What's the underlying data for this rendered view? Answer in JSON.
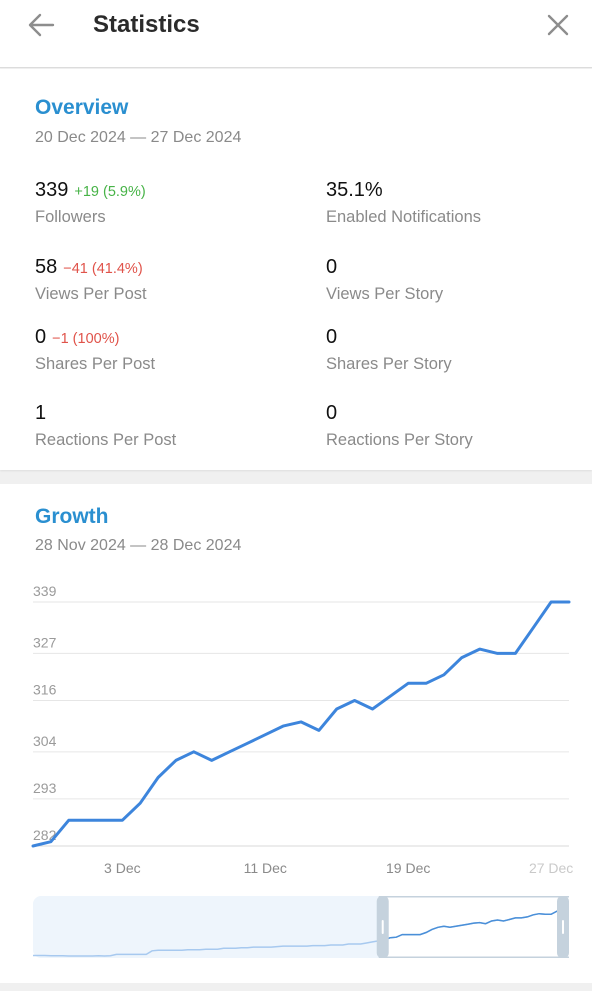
{
  "header": {
    "title": "Statistics",
    "back_icon": "arrow-left-icon",
    "close_icon": "close-icon"
  },
  "overview": {
    "title": "Overview",
    "range": "20 Dec 2024 — 27 Dec 2024",
    "stats": [
      {
        "value": "339",
        "delta": "+19 (5.9%)",
        "trend": "up",
        "label": "Followers"
      },
      {
        "value": "35.1%",
        "delta": "",
        "trend": "none",
        "label": "Enabled Notifications"
      },
      {
        "value": "58",
        "delta": "−41 (41.4%)",
        "trend": "down",
        "label": "Views Per Post"
      },
      {
        "value": "0",
        "delta": "",
        "trend": "none",
        "label": "Views Per Story"
      },
      {
        "value": "0",
        "delta": "−1 (100%)",
        "trend": "down",
        "label": "Shares Per Post"
      },
      {
        "value": "0",
        "delta": "",
        "trend": "none",
        "label": "Shares Per Story"
      },
      {
        "value": "1",
        "delta": "",
        "trend": "none",
        "label": "Reactions Per Post"
      },
      {
        "value": "0",
        "delta": "",
        "trend": "none",
        "label": "Reactions Per Story"
      }
    ]
  },
  "growth": {
    "title": "Growth",
    "range": "28 Nov 2024 — 28 Dec 2024"
  },
  "colors": {
    "accent": "#2a8fd0",
    "line": "#3d85dc",
    "positive": "#47b347",
    "negative": "#e0534a"
  },
  "chart_data": {
    "type": "line",
    "title": "",
    "xlabel": "",
    "ylabel": "",
    "x_ticks": [
      "3 Dec",
      "11 Dec",
      "19 Dec",
      "27 Dec"
    ],
    "y_ticks": [
      282,
      293,
      304,
      316,
      327,
      339
    ],
    "ylim": [
      282,
      339
    ],
    "grid": true,
    "x": [
      "28 Nov",
      "29 Nov",
      "30 Nov",
      "1 Dec",
      "2 Dec",
      "3 Dec",
      "4 Dec",
      "5 Dec",
      "6 Dec",
      "7 Dec",
      "8 Dec",
      "9 Dec",
      "10 Dec",
      "11 Dec",
      "12 Dec",
      "13 Dec",
      "14 Dec",
      "15 Dec",
      "16 Dec",
      "17 Dec",
      "18 Dec",
      "19 Dec",
      "20 Dec",
      "21 Dec",
      "22 Dec",
      "23 Dec",
      "24 Dec",
      "25 Dec",
      "26 Dec",
      "27 Dec",
      "28 Dec"
    ],
    "series": [
      {
        "values": [
          282,
          283,
          288,
          288,
          288,
          288,
          292,
          298,
          302,
          304,
          302,
          304,
          306,
          308,
          310,
          311,
          309,
          314,
          316,
          314,
          317,
          320,
          320,
          322,
          326,
          328,
          327,
          327,
          333,
          339,
          339
        ]
      }
    ],
    "navigator": {
      "full_range_values": [
        248,
        248,
        248,
        247.5,
        247.5,
        247.5,
        247,
        247,
        247,
        247,
        247,
        247.5,
        247,
        247.5,
        250,
        250,
        250,
        250,
        250,
        250,
        257,
        258,
        258,
        258,
        258,
        258,
        259,
        259,
        259,
        260,
        260,
        260,
        262,
        262,
        262,
        263,
        263,
        264,
        264,
        264,
        264,
        265,
        266,
        266,
        266,
        266,
        266,
        267,
        267,
        267,
        268,
        268,
        268,
        270,
        270,
        270,
        272,
        274,
        276,
        278,
        282,
        283,
        288,
        288,
        288,
        288,
        292,
        298,
        302,
        304,
        302,
        304,
        306,
        308,
        310,
        311,
        309,
        314,
        316,
        314,
        317,
        320,
        320,
        322,
        326,
        328,
        327,
        327,
        333,
        339,
        339
      ],
      "selection_start_fraction": 0.645,
      "selection_end_fraction": 1.0
    }
  }
}
